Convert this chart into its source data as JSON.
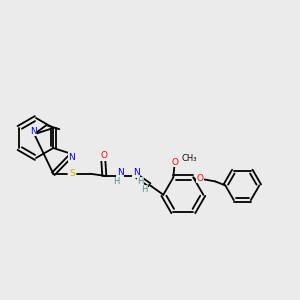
{
  "background_color": "#ebebeb",
  "bond_color": "#000000",
  "atom_colors": {
    "N": "#0000ee",
    "O": "#ff0000",
    "S": "#bbbb00",
    "H": "#4a9090",
    "C": "#000000"
  },
  "lw": 1.3
}
